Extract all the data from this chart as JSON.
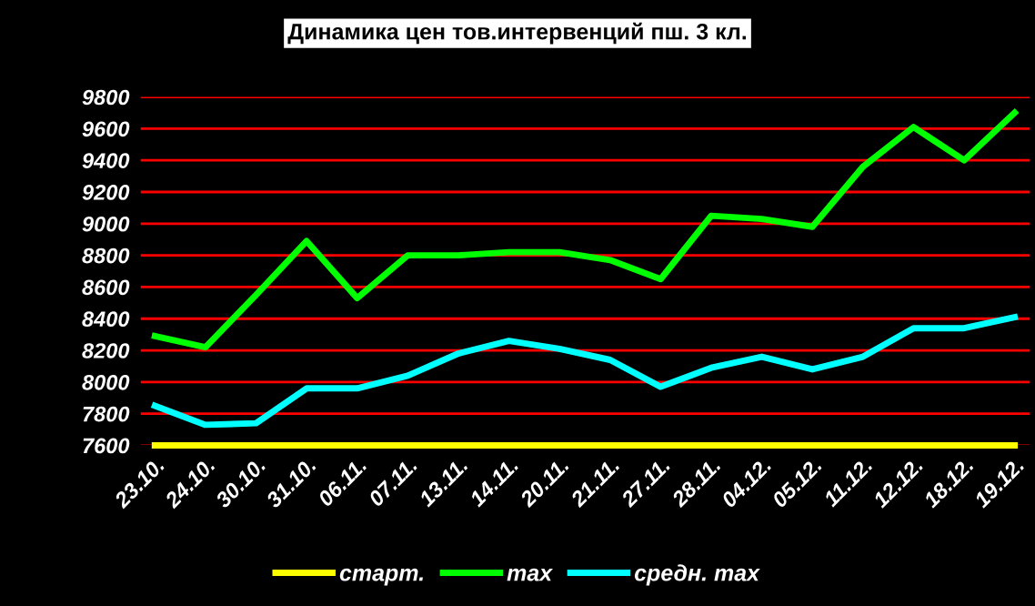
{
  "chart_data": {
    "type": "line",
    "title": "Динамика цен тов.интервенций пш. 3 кл.",
    "categories": [
      "23.10.",
      "24.10.",
      "30.10.",
      "31.10.",
      "06.11.",
      "07.11.",
      "13.11.",
      "14.11.",
      "20.11.",
      "21.11.",
      "27.11.",
      "28.11.",
      "04.12.",
      "05.12.",
      "11.12.",
      "12.12.",
      "18.12.",
      "19.12."
    ],
    "series": [
      {
        "name": "старт.",
        "color": "#ffff00",
        "values": [
          7600,
          7600,
          7600,
          7600,
          7600,
          7600,
          7600,
          7600,
          7600,
          7600,
          7600,
          7600,
          7600,
          7600,
          7600,
          7600,
          7600,
          7600
        ]
      },
      {
        "name": "max",
        "color": "#00ff00",
        "values": [
          8290,
          8220,
          8550,
          8890,
          8530,
          8800,
          8800,
          8820,
          8820,
          8770,
          8650,
          9050,
          9030,
          8980,
          9360,
          9610,
          9400,
          9700
        ]
      },
      {
        "name": "средн. max",
        "color": "#00ffff",
        "values": [
          7850,
          7730,
          7740,
          7960,
          7960,
          8040,
          8180,
          8260,
          8210,
          8140,
          7970,
          8090,
          8160,
          8080,
          8160,
          8340,
          8340,
          8410
        ]
      }
    ],
    "ylim": [
      7600,
      9800
    ],
    "yticks": [
      7600,
      7800,
      8000,
      8200,
      8400,
      8600,
      8800,
      9000,
      9200,
      9400,
      9600,
      9800
    ],
    "grid": "y",
    "legend": "bottom",
    "marker": "none",
    "line_style": "solid"
  }
}
